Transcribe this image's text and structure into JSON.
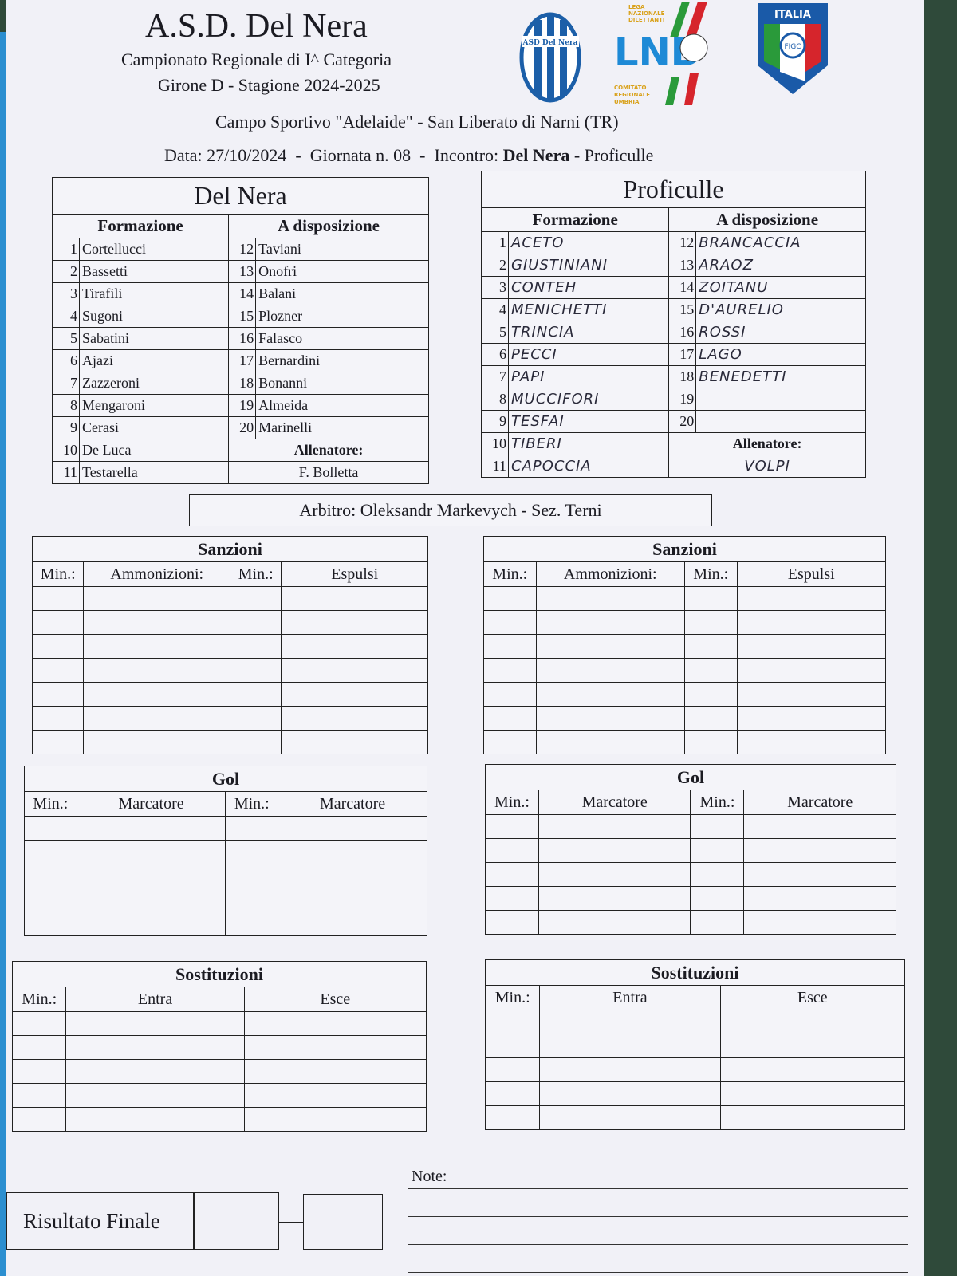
{
  "header": {
    "title": "A.S.D. Del Nera",
    "line1": "Campionato Regionale di I^ Categoria",
    "line2": "Girone D - Stagione 2024-2025",
    "venue": "Campo Sportivo \"Adelaide\" - San Liberato di Narni (TR)",
    "date_label": "Data: 27/10/2024",
    "round_label": "Giornata n. 08",
    "match_prefix": "Incontro:",
    "home": "Del Nera",
    "away": "- Proficulle",
    "sep": "-"
  },
  "logos": {
    "club": "ASD Del Nera",
    "lnd_top": "LEGA NAZIONALE DILETTANTI",
    "lnd_mark": "LND",
    "lnd_bottom": "COMITATO REGIONALE UMBRIA",
    "figc_top": "ITALIA",
    "figc": "FIGC"
  },
  "labels": {
    "formazione": "Formazione",
    "disposizione": "A disposizione",
    "allenatore": "Allenatore:",
    "sanzioni": "Sanzioni",
    "min": "Min.:",
    "ammonizioni": "Ammonizioni:",
    "espulsi": "Espulsi",
    "gol": "Gol",
    "marcatore": "Marcatore",
    "sostituzioni": "Sostituzioni",
    "entra": "Entra",
    "esce": "Esce",
    "risultato": "Risultato Finale",
    "note": "Note:"
  },
  "referee": "Arbitro: Oleksandr Markevych - Sez. Terni",
  "home_team": {
    "name": "Del Nera",
    "starters": [
      "Cortellucci",
      "Bassetti",
      "Tirafili",
      "Sugoni",
      "Sabatini",
      "Ajazi",
      "Zazzeroni",
      "Mengaroni",
      "Cerasi",
      "De Luca",
      "Testarella"
    ],
    "bench": [
      "Taviani",
      "Onofri",
      "Balani",
      "Plozner",
      "Falasco",
      "Bernardini",
      "Bonanni",
      "Almeida",
      "Marinelli"
    ],
    "coach": "F. Bolletta"
  },
  "away_team": {
    "name": "Proficulle",
    "starters": [
      "ACETO",
      "GIUSTINIANI",
      "CONTEH",
      "MENICHETTI",
      "TRINCIA",
      "PECCI",
      "PAPI",
      "MUCCIFORI",
      "TESFAI",
      "TIBERI",
      "CAPOCCIA"
    ],
    "bench": [
      "BRANCACCIA",
      "ARAOZ",
      "ZOITANU",
      "D'AURELIO",
      "ROSSI",
      "LAGO",
      "BENEDETTI",
      "",
      ""
    ],
    "coach": "VOLPI"
  }
}
